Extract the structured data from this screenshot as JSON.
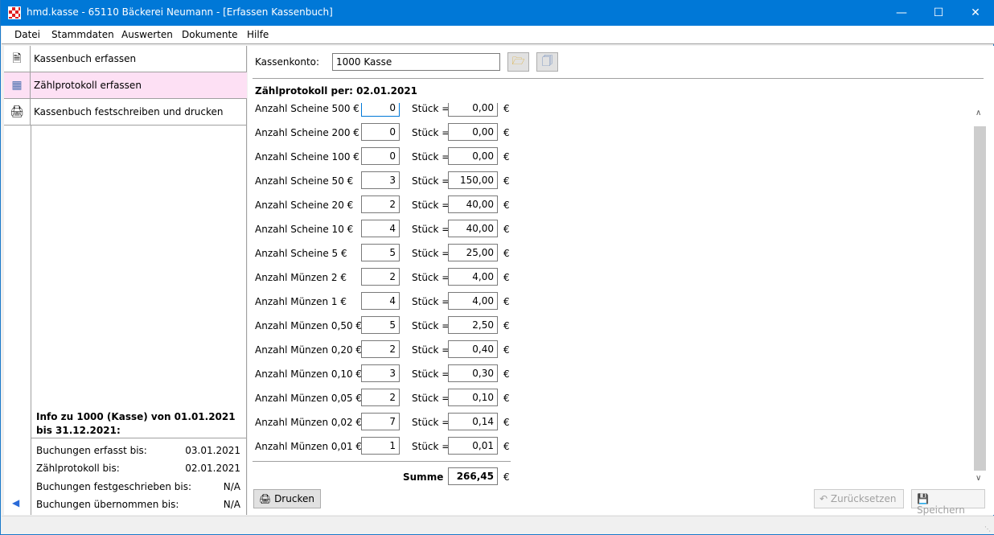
{
  "window": {
    "title": "hmd.kasse - 65110 Bäckerei Neumann - [Erfassen Kassenbuch]"
  },
  "menu": [
    "Datei",
    "Stammdaten",
    "Auswerten",
    "Dokumente",
    "Hilfe"
  ],
  "nav": [
    {
      "label": "Kassenbuch erfassen",
      "icon": "new-document-icon",
      "selected": false
    },
    {
      "label": "Zählprotokoll erfassen",
      "icon": "calculator-icon",
      "selected": true
    },
    {
      "label": "Kassenbuch festschreiben und drucken",
      "icon": "printer-icon",
      "selected": false
    }
  ],
  "info": {
    "title": "Info zu 1000 (Kasse) von 01.01.2021 bis 31.12.2021:",
    "rows": [
      {
        "label": "Buchungen erfasst bis:",
        "value": "03.01.2021"
      },
      {
        "label": "Zählprotokoll bis:",
        "value": "02.01.2021"
      },
      {
        "label": "Buchungen festgeschrieben bis:",
        "value": "N/A"
      },
      {
        "label": "Buchungen übernommen bis:",
        "value": "N/A"
      }
    ]
  },
  "form": {
    "kassenkonto_label": "Kassenkonto:",
    "kassenkonto_value": "1000 Kasse",
    "heading": "Zählprotokoll per:  02.01.2021",
    "stueck_label": "Stück =",
    "currency": "€",
    "rows": [
      {
        "label": "Anzahl Scheine 500 €",
        "qty": "0",
        "amount": "0,00"
      },
      {
        "label": "Anzahl Scheine 200 €",
        "qty": "0",
        "amount": "0,00"
      },
      {
        "label": "Anzahl Scheine 100 €",
        "qty": "0",
        "amount": "0,00"
      },
      {
        "label": "Anzahl Scheine 50 €",
        "qty": "3",
        "amount": "150,00"
      },
      {
        "label": "Anzahl Scheine 20 €",
        "qty": "2",
        "amount": "40,00"
      },
      {
        "label": "Anzahl Scheine 10 €",
        "qty": "4",
        "amount": "40,00"
      },
      {
        "label": "Anzahl Scheine 5 €",
        "qty": "5",
        "amount": "25,00"
      },
      {
        "label": "Anzahl Münzen 2 €",
        "qty": "2",
        "amount": "4,00"
      },
      {
        "label": "Anzahl Münzen 1 €",
        "qty": "4",
        "amount": "4,00"
      },
      {
        "label": "Anzahl Münzen 0,50 €",
        "qty": "5",
        "amount": "2,50"
      },
      {
        "label": "Anzahl Münzen 0,20 €",
        "qty": "2",
        "amount": "0,40"
      },
      {
        "label": "Anzahl Münzen 0,10 €",
        "qty": "3",
        "amount": "0,30"
      },
      {
        "label": "Anzahl Münzen 0,05 €",
        "qty": "2",
        "amount": "0,10"
      },
      {
        "label": "Anzahl Münzen 0,02 €",
        "qty": "7",
        "amount": "0,14"
      },
      {
        "label": "Anzahl Münzen 0,01 €",
        "qty": "1",
        "amount": "0,01"
      }
    ],
    "sum_label": "Summe",
    "sum_value": "266,45"
  },
  "buttons": {
    "print": "Drucken",
    "reset": "Zurücksetzen",
    "save": "Speichern"
  }
}
